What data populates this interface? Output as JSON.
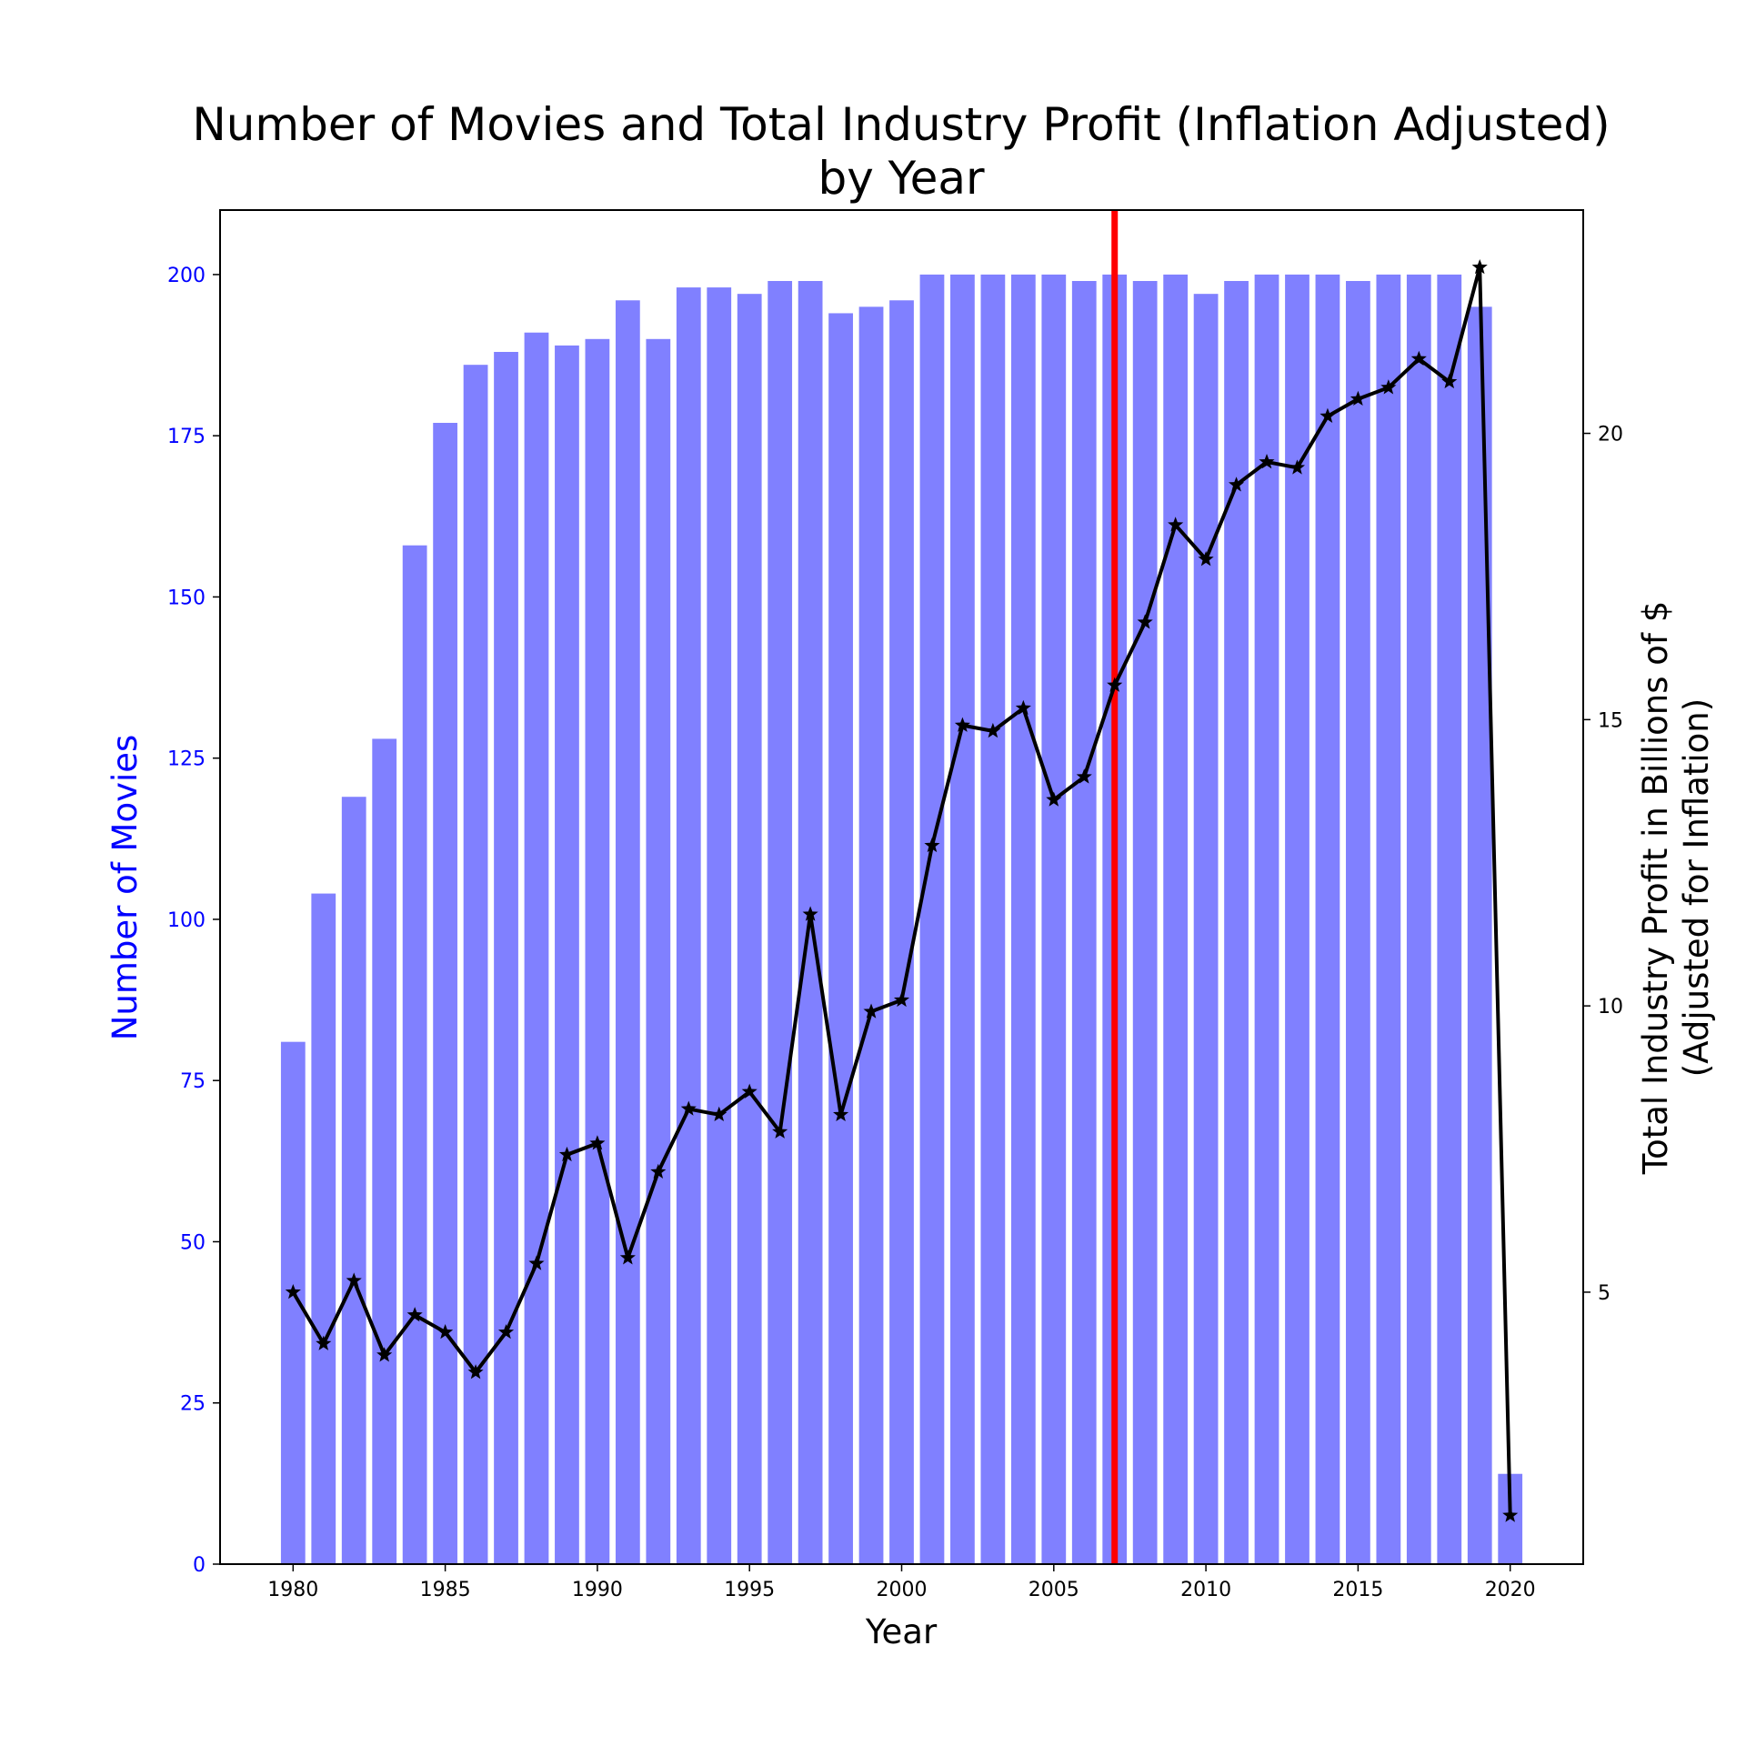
{
  "chart_data": {
    "type": "bar",
    "title_lines": [
      "Number of Movies and Total Industry Profit (Inflation Adjusted)",
      "by Year"
    ],
    "xlabel": "Year",
    "ylabel_left": "Number of Movies",
    "ylabel_right_lines": [
      "Total Industry Profit in Billions of $",
      "(Adjusted for Inflation)"
    ],
    "x": [
      1980,
      1981,
      1982,
      1983,
      1984,
      1985,
      1986,
      1987,
      1988,
      1989,
      1990,
      1991,
      1992,
      1993,
      1994,
      1995,
      1996,
      1997,
      1998,
      1999,
      2000,
      2001,
      2002,
      2003,
      2004,
      2005,
      2006,
      2007,
      2008,
      2009,
      2010,
      2011,
      2012,
      2013,
      2014,
      2015,
      2016,
      2017,
      2018,
      2019,
      2020
    ],
    "xlim": [
      1977.6,
      2022.4
    ],
    "xticks": [
      1980,
      1985,
      1990,
      1995,
      2000,
      2005,
      2010,
      2015,
      2020
    ],
    "series": [
      {
        "name": "Number of Movies",
        "axis": "left",
        "kind": "bar",
        "color": "#8080ff",
        "values": [
          81,
          104,
          119,
          128,
          158,
          177,
          186,
          188,
          191,
          189,
          190,
          196,
          190,
          198,
          198,
          197,
          199,
          199,
          194,
          195,
          196,
          200,
          200,
          200,
          200,
          200,
          199,
          200,
          199,
          200,
          197,
          199,
          200,
          200,
          200,
          199,
          200,
          200,
          200,
          195,
          14
        ]
      },
      {
        "name": "Total Industry Profit",
        "axis": "right",
        "kind": "line",
        "marker": "star",
        "color": "#000000",
        "values": [
          5.0,
          4.1,
          5.2,
          3.9,
          4.6,
          4.3,
          3.6,
          4.3,
          5.5,
          7.4,
          7.6,
          5.6,
          7.1,
          8.2,
          8.1,
          8.5,
          7.8,
          11.6,
          8.1,
          9.9,
          10.1,
          12.8,
          14.9,
          14.8,
          15.2,
          13.6,
          14.0,
          15.6,
          16.7,
          18.4,
          17.8,
          19.1,
          19.5,
          19.4,
          20.3,
          20.6,
          20.8,
          21.3,
          20.9,
          22.9,
          1.1
        ]
      }
    ],
    "ylim_left": [
      0,
      210
    ],
    "yticks_left": [
      0,
      25,
      50,
      75,
      100,
      125,
      150,
      175,
      200
    ],
    "ylim_right": [
      0.25,
      23.9
    ],
    "yticks_right": [
      5,
      10,
      15,
      20
    ],
    "vline": {
      "x": 2007,
      "color": "#ff0000"
    },
    "left_axis_color": "#0000ff",
    "grid": false
  }
}
